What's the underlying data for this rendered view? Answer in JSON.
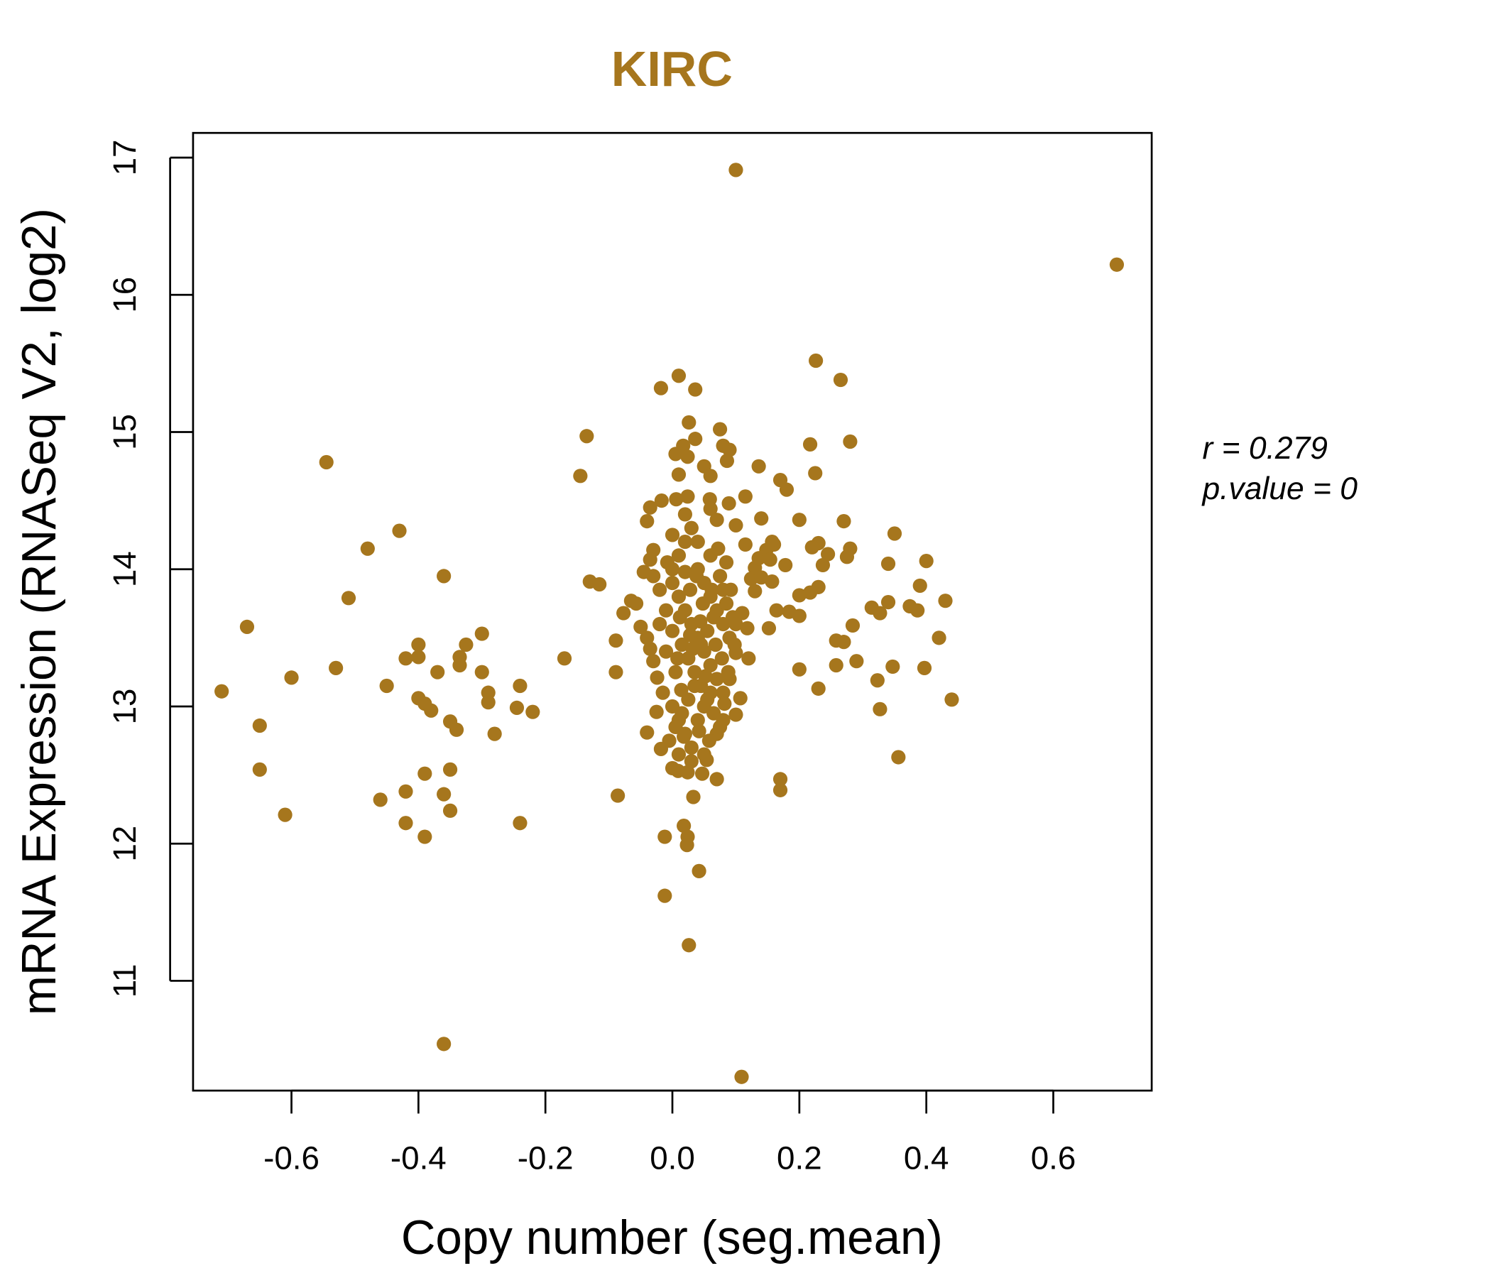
{
  "chart_data": {
    "type": "scatter",
    "title": "KIRC",
    "xlabel": "Copy number (seg.mean)",
    "ylabel": "mRNA Expression (RNASeq V2, log2)",
    "xlim": [
      -0.755,
      0.755
    ],
    "ylim": [
      10.2,
      17.18
    ],
    "xticks": [
      -0.6,
      -0.4,
      -0.2,
      0.0,
      0.2,
      0.4,
      0.6
    ],
    "xtick_labels": [
      "-0.6",
      "-0.4",
      "-0.2",
      "0.0",
      "0.2",
      "0.4",
      "0.6"
    ],
    "yticks": [
      11,
      12,
      13,
      14,
      15,
      16,
      17
    ],
    "ytick_labels": [
      "11",
      "12",
      "13",
      "14",
      "15",
      "16",
      "17"
    ],
    "grid": false,
    "point_color": "#A6761D",
    "title_color": "#A6761D",
    "annotations": {
      "r": "r = 0.279",
      "p": "p.value = 0"
    },
    "points": [
      [
        0.1,
        16.91
      ],
      [
        0.7,
        16.22
      ],
      [
        -0.545,
        14.78
      ],
      [
        -0.71,
        13.11
      ],
      [
        -0.67,
        13.58
      ],
      [
        -0.6,
        13.21
      ],
      [
        -0.65,
        12.86
      ],
      [
        -0.65,
        12.54
      ],
      [
        -0.61,
        12.21
      ],
      [
        -0.51,
        13.79
      ],
      [
        -0.53,
        13.28
      ],
      [
        -0.48,
        14.15
      ],
      [
        -0.43,
        14.28
      ],
      [
        -0.45,
        13.15
      ],
      [
        -0.46,
        12.32
      ],
      [
        -0.42,
        13.35
      ],
      [
        -0.4,
        13.45
      ],
      [
        -0.4,
        13.36
      ],
      [
        -0.4,
        13.06
      ],
      [
        -0.39,
        13.02
      ],
      [
        -0.38,
        12.97
      ],
      [
        -0.42,
        12.38
      ],
      [
        -0.42,
        12.15
      ],
      [
        -0.39,
        12.51
      ],
      [
        -0.39,
        12.05
      ],
      [
        -0.37,
        13.25
      ],
      [
        -0.36,
        13.95
      ],
      [
        -0.36,
        10.54
      ],
      [
        -0.36,
        12.36
      ],
      [
        -0.35,
        12.24
      ],
      [
        -0.35,
        12.54
      ],
      [
        -0.35,
        12.89
      ],
      [
        -0.34,
        12.83
      ],
      [
        -0.335,
        13.36
      ],
      [
        -0.335,
        13.3
      ],
      [
        -0.325,
        13.45
      ],
      [
        -0.3,
        13.25
      ],
      [
        -0.3,
        13.53
      ],
      [
        -0.29,
        13.1
      ],
      [
        -0.29,
        13.03
      ],
      [
        -0.28,
        12.8
      ],
      [
        -0.245,
        12.99
      ],
      [
        -0.24,
        13.15
      ],
      [
        -0.24,
        12.15
      ],
      [
        -0.22,
        12.96
      ],
      [
        -0.17,
        13.35
      ],
      [
        -0.145,
        14.68
      ],
      [
        -0.135,
        14.97
      ],
      [
        -0.13,
        13.91
      ],
      [
        -0.115,
        13.89
      ],
      [
        0.226,
        15.52
      ],
      [
        0.265,
        15.38
      ],
      [
        0.217,
        14.91
      ],
      [
        0.28,
        14.93
      ],
      [
        0.225,
        14.7
      ],
      [
        0.17,
        14.65
      ],
      [
        0.18,
        14.58
      ],
      [
        0.136,
        14.75
      ],
      [
        0.2,
        14.36
      ],
      [
        0.27,
        14.35
      ],
      [
        0.35,
        14.26
      ],
      [
        0.23,
        14.19
      ],
      [
        0.22,
        14.16
      ],
      [
        0.245,
        14.11
      ],
      [
        0.28,
        14.15
      ],
      [
        0.275,
        14.09
      ],
      [
        0.237,
        14.03
      ],
      [
        0.34,
        14.04
      ],
      [
        0.4,
        14.06
      ],
      [
        0.23,
        13.87
      ],
      [
        0.217,
        13.83
      ],
      [
        0.2,
        13.81
      ],
      [
        0.39,
        13.88
      ],
      [
        0.34,
        13.76
      ],
      [
        0.43,
        13.77
      ],
      [
        0.314,
        13.72
      ],
      [
        0.327,
        13.68
      ],
      [
        0.374,
        13.73
      ],
      [
        0.386,
        13.7
      ],
      [
        0.184,
        13.69
      ],
      [
        0.2,
        13.66
      ],
      [
        0.164,
        13.7
      ],
      [
        0.152,
        13.57
      ],
      [
        0.284,
        13.59
      ],
      [
        0.258,
        13.48
      ],
      [
        0.27,
        13.47
      ],
      [
        0.42,
        13.5
      ],
      [
        0.258,
        13.3
      ],
      [
        0.29,
        13.33
      ],
      [
        0.2,
        13.27
      ],
      [
        0.347,
        13.29
      ],
      [
        0.397,
        13.28
      ],
      [
        0.323,
        13.19
      ],
      [
        0.23,
        13.13
      ],
      [
        0.44,
        13.05
      ],
      [
        0.327,
        12.98
      ],
      [
        0.356,
        12.63
      ],
      [
        0.17,
        12.47
      ],
      [
        0.17,
        12.39
      ],
      [
        0.109,
        10.3
      ],
      [
        0.01,
        15.41
      ],
      [
        -0.018,
        15.32
      ],
      [
        0.036,
        15.31
      ],
      [
        0.026,
        15.07
      ],
      [
        0.075,
        15.02
      ],
      [
        0.036,
        14.95
      ],
      [
        0.017,
        14.9
      ],
      [
        0.08,
        14.9
      ],
      [
        0.09,
        14.87
      ],
      [
        0.005,
        14.84
      ],
      [
        0.024,
        14.82
      ],
      [
        0.086,
        14.79
      ],
      [
        0.05,
        14.75
      ],
      [
        0.06,
        14.68
      ],
      [
        0.01,
        14.69
      ],
      [
        -0.035,
        14.45
      ],
      [
        -0.017,
        14.5
      ],
      [
        0.006,
        14.51
      ],
      [
        0.024,
        14.53
      ],
      [
        0.059,
        14.51
      ],
      [
        0.089,
        14.48
      ],
      [
        0.115,
        14.53
      ],
      [
        0.06,
        14.44
      ],
      [
        -0.089,
        13.48
      ],
      [
        -0.089,
        13.25
      ],
      [
        -0.077,
        13.68
      ],
      [
        -0.065,
        13.77
      ],
      [
        -0.086,
        12.35
      ],
      [
        -0.012,
        12.05
      ],
      [
        -0.012,
        11.62
      ],
      [
        0.026,
        11.26
      ],
      [
        0.018,
        12.13
      ],
      [
        0.024,
        12.05
      ],
      [
        0.023,
        11.99
      ],
      [
        0.042,
        11.8
      ],
      [
        0.033,
        12.34
      ],
      [
        0.009,
        12.53
      ],
      [
        0.024,
        12.52
      ],
      [
        0.07,
        12.47
      ],
      [
        -0.04,
        12.81
      ],
      [
        -0.018,
        12.69
      ],
      [
        -0.025,
        12.96
      ],
      [
        0.047,
        12.51
      ],
      [
        0.054,
        12.61
      ],
      [
        0.1,
        12.94
      ],
      [
        0.107,
        13.06
      ],
      [
        0.12,
        13.35
      ],
      [
        0.1,
        13.39
      ],
      [
        0.118,
        13.57
      ],
      [
        0.11,
        13.68
      ],
      [
        0.124,
        13.93
      ],
      [
        0.13,
        14.01
      ],
      [
        0.136,
        14.08
      ],
      [
        0.148,
        14.14
      ],
      [
        0.157,
        14.2
      ],
      [
        0.14,
        14.37
      ],
      [
        0.154,
        14.07
      ],
      [
        0.16,
        14.18
      ],
      [
        0.178,
        14.03
      ],
      [
        0.13,
        13.84
      ],
      [
        0.14,
        13.94
      ],
      [
        0.157,
        13.91
      ],
      [
        0.115,
        14.18
      ],
      [
        0.1,
        14.32
      ],
      [
        0.07,
        14.36
      ],
      [
        -0.04,
        14.35
      ],
      [
        -0.03,
        14.14
      ],
      [
        -0.035,
        14.07
      ],
      [
        -0.045,
        13.98
      ],
      [
        -0.057,
        13.75
      ],
      [
        -0.05,
        13.58
      ],
      [
        -0.04,
        13.5
      ],
      [
        -0.035,
        13.42
      ],
      [
        -0.03,
        13.33
      ],
      [
        -0.024,
        13.21
      ],
      [
        0.0,
        13.9
      ],
      [
        0.01,
        13.8
      ],
      [
        0.02,
        13.7
      ],
      [
        0.03,
        13.6
      ],
      [
        0.04,
        13.5
      ],
      [
        0.05,
        13.4
      ],
      [
        0.06,
        13.3
      ],
      [
        0.07,
        13.2
      ],
      [
        0.08,
        13.1
      ],
      [
        0.0,
        13.0
      ],
      [
        0.01,
        12.9
      ],
      [
        0.02,
        12.8
      ],
      [
        0.03,
        12.7
      ],
      [
        0.04,
        12.9
      ],
      [
        0.05,
        13.0
      ],
      [
        0.06,
        13.1
      ],
      [
        0.07,
        12.8
      ],
      [
        0.08,
        12.9
      ],
      [
        0.09,
        13.2
      ],
      [
        -0.01,
        13.4
      ],
      [
        -0.01,
        13.7
      ],
      [
        0.0,
        14.0
      ],
      [
        0.01,
        14.1
      ],
      [
        0.02,
        14.2
      ],
      [
        0.03,
        14.3
      ],
      [
        0.04,
        14.0
      ],
      [
        0.05,
        13.9
      ],
      [
        0.06,
        13.8
      ],
      [
        0.07,
        13.7
      ],
      [
        0.08,
        13.6
      ],
      [
        0.09,
        13.5
      ],
      [
        0.0,
        13.55
      ],
      [
        0.015,
        13.45
      ],
      [
        0.025,
        13.35
      ],
      [
        0.035,
        13.25
      ],
      [
        0.045,
        13.15
      ],
      [
        0.055,
        13.05
      ],
      [
        0.065,
        12.95
      ],
      [
        0.075,
        12.85
      ],
      [
        0.085,
        13.75
      ],
      [
        0.095,
        13.65
      ],
      [
        -0.005,
        12.75
      ],
      [
        0.005,
        12.85
      ],
      [
        0.015,
        12.95
      ],
      [
        0.025,
        13.05
      ],
      [
        0.035,
        13.15
      ],
      [
        0.045,
        13.45
      ],
      [
        0.055,
        13.55
      ],
      [
        0.065,
        13.65
      ],
      [
        0.075,
        13.95
      ],
      [
        0.085,
        14.05
      ],
      [
        0.0,
        14.25
      ],
      [
        0.02,
        14.4
      ],
      [
        0.04,
        14.2
      ],
      [
        0.06,
        14.1
      ],
      [
        0.08,
        13.85
      ],
      [
        -0.02,
        13.85
      ],
      [
        -0.02,
        13.6
      ],
      [
        -0.015,
        13.1
      ],
      [
        0.005,
        13.25
      ],
      [
        0.012,
        13.65
      ],
      [
        0.028,
        13.85
      ],
      [
        0.038,
        13.95
      ],
      [
        0.048,
        13.75
      ],
      [
        0.058,
        12.75
      ],
      [
        0.068,
        13.45
      ],
      [
        0.078,
        13.35
      ],
      [
        0.088,
        13.25
      ],
      [
        0.098,
        13.45
      ],
      [
        0.03,
        12.6
      ],
      [
        0.01,
        12.65
      ],
      [
        0.05,
        12.65
      ],
      [
        0.02,
        13.98
      ],
      [
        0.044,
        13.62
      ],
      [
        0.032,
        13.42
      ],
      [
        0.014,
        13.12
      ],
      [
        0.062,
        13.85
      ],
      [
        0.072,
        14.15
      ],
      [
        -0.008,
        14.05
      ],
      [
        0.008,
        13.35
      ],
      [
        0.028,
        13.52
      ],
      [
        0.052,
        13.22
      ],
      [
        0.042,
        12.82
      ],
      [
        0.018,
        12.78
      ],
      [
        0.082,
        13.02
      ],
      [
        0.092,
        13.85
      ],
      [
        0.1,
        13.6
      ],
      [
        -0.03,
        13.95
      ],
      [
        0.0,
        12.55
      ]
    ]
  }
}
